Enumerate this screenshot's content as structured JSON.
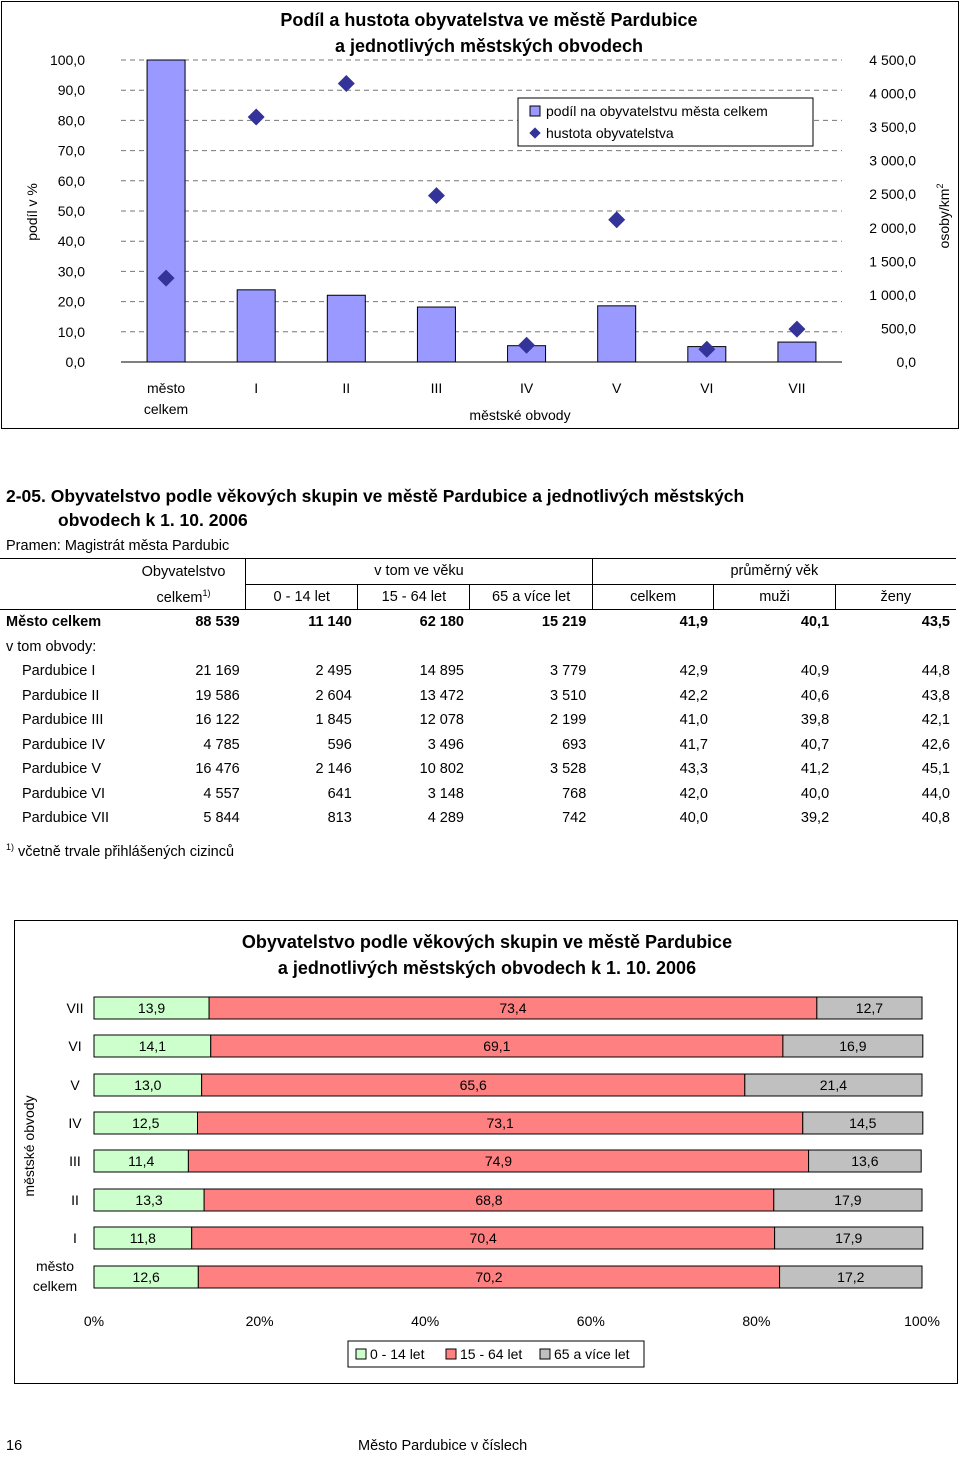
{
  "chart1": {
    "title_line1": "Podíl a hustota obyvatelstva ve městě Pardubice",
    "title_line2": "a jednotlivých městských obvodech",
    "ylabel_left": "podíl v %",
    "ylabel_right": "osoby/km",
    "ylabel_right_sup": "2",
    "xlabel": "městské obvody",
    "legend": [
      "podíl na obyvatelstvu města celkem",
      "hustota obyvatelstva"
    ],
    "left_ticks": [
      "100,0",
      "90,0",
      "80,0",
      "70,0",
      "60,0",
      "50,0",
      "40,0",
      "30,0",
      "20,0",
      "10,0",
      "0,0"
    ],
    "right_ticks": [
      "4 500,0",
      "4 000,0",
      "3 500,0",
      "3 000,0",
      "2 500,0",
      "2 000,0",
      "1 500,0",
      "1 000,0",
      "500,0",
      "0,0"
    ],
    "colors": {
      "bar": "#9999ff",
      "marker": "#333399",
      "grid": "#777777"
    }
  },
  "section": {
    "code_title": "2-05. Obyvatelstvo podle věkových skupin ve městě Pardubice a jednotlivých městských",
    "code_title_l2": "obvodech k 1. 10. 2006",
    "source": "Pramen: Magistrát města Pardubic"
  },
  "table": {
    "h_obyv": "Obyvatelstvo",
    "h_celkem": "celkem",
    "h_celkem_sup": "1)",
    "h_vtom": "v tom ve věku",
    "h_prumer": "průměrný věk",
    "h_sub": [
      "0 - 14 let",
      "15 - 64 let",
      "65 a více let",
      "celkem",
      "muži",
      "ženy"
    ],
    "mesto_label": "Město celkem",
    "mesto_vals": [
      "88 539",
      "11 140",
      "62 180",
      "15 219",
      "41,9",
      "40,1",
      "43,5"
    ],
    "vtom_label": "v tom obvody:",
    "rows": [
      {
        "name": "Pardubice I",
        "vals": [
          "21 169",
          "2 495",
          "14 895",
          "3 779",
          "42,9",
          "40,9",
          "44,8"
        ]
      },
      {
        "name": "Pardubice II",
        "vals": [
          "19 586",
          "2 604",
          "13 472",
          "3 510",
          "42,2",
          "40,6",
          "43,8"
        ]
      },
      {
        "name": "Pardubice III",
        "vals": [
          "16 122",
          "1 845",
          "12 078",
          "2 199",
          "41,0",
          "39,8",
          "42,1"
        ]
      },
      {
        "name": "Pardubice IV",
        "vals": [
          "4 785",
          "596",
          "3 496",
          "693",
          "41,7",
          "40,7",
          "42,6"
        ]
      },
      {
        "name": "Pardubice V",
        "vals": [
          "16 476",
          "2 146",
          "10 802",
          "3 528",
          "43,3",
          "41,2",
          "45,1"
        ]
      },
      {
        "name": "Pardubice VI",
        "vals": [
          "4 557",
          "641",
          "3 148",
          "768",
          "42,0",
          "40,0",
          "44,0"
        ]
      },
      {
        "name": "Pardubice VII",
        "vals": [
          "5 844",
          "813",
          "4 289",
          "742",
          "40,0",
          "39,2",
          "40,8"
        ]
      }
    ],
    "note_sup": "1)",
    "note": "včetně trvale přihlášených cizinců"
  },
  "chart2": {
    "title_line1": "Obyvatelstvo podle věkových skupin ve městě Pardubice",
    "title_line2": "a jednotlivých městských obvodech k 1. 10. 2006",
    "ylabel": "městské obvody",
    "x_ticks": [
      "0%",
      "20%",
      "40%",
      "60%",
      "80%",
      "100%"
    ],
    "legend": [
      "0 - 14 let",
      "15 - 64 let",
      "65 a více let"
    ],
    "colors": {
      "young": "#ccffcc",
      "adult": "#ff8080",
      "old": "#c0c0c0"
    }
  },
  "footer": {
    "page": "16",
    "center": "Město Pardubice v číslech"
  },
  "chart_data": [
    {
      "type": "bar",
      "title": "Podíl a hustota obyvatelstva ve městě Pardubice a jednotlivých městských obvodech",
      "xlabel": "městské obvody",
      "ylabel": "podíl v %",
      "y2label": "osoby/km2",
      "categories": [
        "město celkem",
        "I",
        "II",
        "III",
        "IV",
        "V",
        "VI",
        "VII"
      ],
      "series": [
        {
          "name": "podíl na obyvatelstvu města celkem",
          "axis": "left",
          "values": [
            100.0,
            23.9,
            22.1,
            18.2,
            5.4,
            18.6,
            5.1,
            6.6
          ]
        },
        {
          "name": "hustota obyvatelstva",
          "axis": "right",
          "values": [
            1250,
            3650,
            4150,
            2480,
            250,
            2120,
            190,
            490
          ]
        }
      ],
      "ylim": [
        0,
        100
      ],
      "y2lim": [
        0,
        4500
      ],
      "grid": true,
      "legend_position": "top-right"
    },
    {
      "type": "bar",
      "stacked": true,
      "orientation": "horizontal",
      "percent": true,
      "title": "Obyvatelstvo podle věkových skupin ve městě Pardubice a jednotlivých městských obvodech k 1. 10. 2006",
      "ylabel": "městské obvody",
      "categories": [
        "VII",
        "VI",
        "V",
        "IV",
        "III",
        "II",
        "I",
        "město celkem"
      ],
      "series": [
        {
          "name": "0 - 14 let",
          "values": [
            13.9,
            14.1,
            13.0,
            12.5,
            11.4,
            13.3,
            11.8,
            12.6
          ]
        },
        {
          "name": "15 - 64 let",
          "values": [
            73.4,
            69.1,
            65.6,
            73.1,
            74.9,
            68.8,
            70.4,
            70.2
          ]
        },
        {
          "name": "65 a více let",
          "values": [
            12.7,
            16.9,
            21.4,
            14.5,
            13.6,
            17.9,
            17.9,
            17.2
          ]
        }
      ],
      "labels": [
        [
          "13,9",
          "73,4",
          "12,7"
        ],
        [
          "14,1",
          "69,1",
          "16,9"
        ],
        [
          "13,0",
          "65,6",
          "21,4"
        ],
        [
          "12,5",
          "73,1",
          "14,5"
        ],
        [
          "11,4",
          "74,9",
          "13,6"
        ],
        [
          "13,3",
          "68,8",
          "17,9"
        ],
        [
          "11,8",
          "70,4",
          "17,9"
        ],
        [
          "12,6",
          "70,2",
          "17,2"
        ]
      ],
      "xlim": [
        0,
        100
      ],
      "legend_position": "bottom"
    }
  ]
}
